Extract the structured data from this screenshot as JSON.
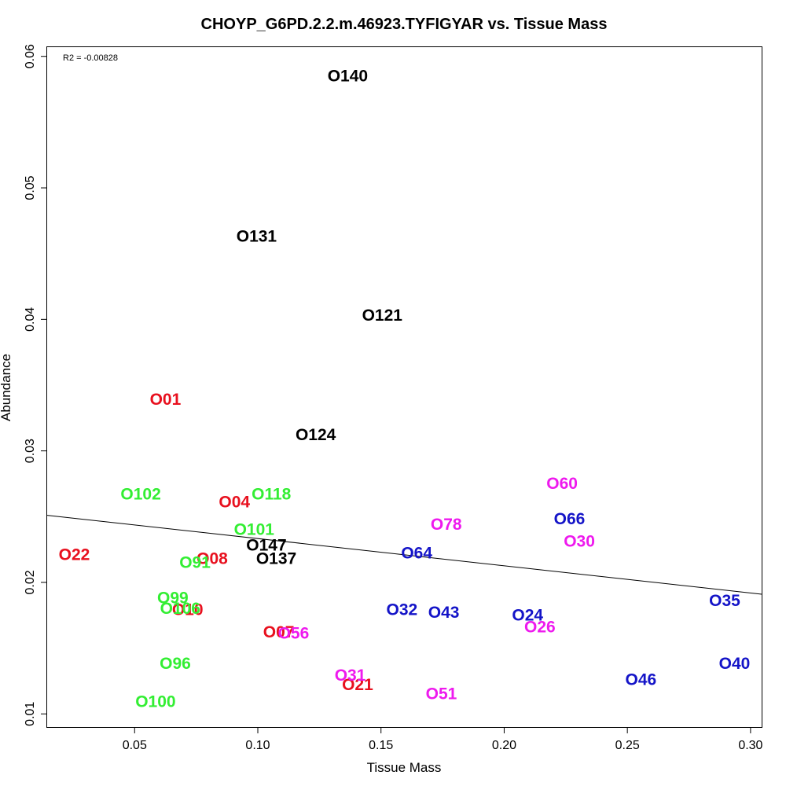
{
  "chart_data": {
    "type": "scatter",
    "title": "CHOYP_G6PD.2.2.m.46923.TYFIGYAR vs. Tissue Mass",
    "xlabel": "Tissue Mass",
    "ylabel": "Abundance",
    "annotation": "R2 = -0.00828",
    "xlim": [
      0.0145,
      0.3045
    ],
    "ylim": [
      0.009,
      0.0607
    ],
    "xticks": [
      0.05,
      0.1,
      0.15,
      0.2,
      0.25,
      0.3
    ],
    "xtick_labels": [
      "0.05",
      "0.10",
      "0.15",
      "0.20",
      "0.25",
      "0.30"
    ],
    "yticks": [
      0.01,
      0.02,
      0.03,
      0.04,
      0.05,
      0.06
    ],
    "ytick_labels": [
      "0.01",
      "0.02",
      "0.03",
      "0.04",
      "0.05",
      "0.06"
    ],
    "grid": false,
    "colors": {
      "red": "#e8101e",
      "green": "#33ee33",
      "black": "#000000",
      "magenta": "#ee1aee",
      "blue": "#1414c8"
    },
    "regression": {
      "x": [
        0.0145,
        0.3045
      ],
      "y": [
        0.0251,
        0.0191
      ]
    },
    "points": [
      {
        "label": "O140",
        "x": 0.1365,
        "y": 0.0585,
        "color": "black"
      },
      {
        "label": "O131",
        "x": 0.0995,
        "y": 0.0463,
        "color": "black"
      },
      {
        "label": "O121",
        "x": 0.1505,
        "y": 0.0403,
        "color": "black"
      },
      {
        "label": "O124",
        "x": 0.1235,
        "y": 0.0312,
        "color": "black"
      },
      {
        "label": "O147",
        "x": 0.1035,
        "y": 0.0228,
        "color": "black"
      },
      {
        "label": "O137",
        "x": 0.1075,
        "y": 0.0218,
        "color": "black"
      },
      {
        "label": "O01",
        "x": 0.0625,
        "y": 0.0339,
        "color": "red"
      },
      {
        "label": "O04",
        "x": 0.0905,
        "y": 0.0261,
        "color": "red"
      },
      {
        "label": "O22",
        "x": 0.0255,
        "y": 0.0221,
        "color": "red"
      },
      {
        "label": "O08",
        "x": 0.0815,
        "y": 0.0218,
        "color": "red"
      },
      {
        "label": "O10",
        "x": 0.0715,
        "y": 0.0179,
        "color": "red"
      },
      {
        "label": "O07",
        "x": 0.1085,
        "y": 0.0162,
        "color": "red"
      },
      {
        "label": "O21",
        "x": 0.1405,
        "y": 0.0122,
        "color": "red"
      },
      {
        "label": "O102",
        "x": 0.0525,
        "y": 0.0267,
        "color": "green"
      },
      {
        "label": "O118",
        "x": 0.1055,
        "y": 0.0267,
        "color": "green"
      },
      {
        "label": "O101",
        "x": 0.0985,
        "y": 0.024,
        "color": "green"
      },
      {
        "label": "O91",
        "x": 0.0745,
        "y": 0.0215,
        "color": "green"
      },
      {
        "label": "O99",
        "x": 0.0655,
        "y": 0.0188,
        "color": "green"
      },
      {
        "label": "O106",
        "x": 0.0685,
        "y": 0.018,
        "color": "green"
      },
      {
        "label": "O96",
        "x": 0.0665,
        "y": 0.0138,
        "color": "green"
      },
      {
        "label": "O100",
        "x": 0.0585,
        "y": 0.0109,
        "color": "green"
      },
      {
        "label": "O60",
        "x": 0.2235,
        "y": 0.0275,
        "color": "magenta"
      },
      {
        "label": "O78",
        "x": 0.1765,
        "y": 0.0244,
        "color": "magenta"
      },
      {
        "label": "O30",
        "x": 0.2305,
        "y": 0.0231,
        "color": "magenta"
      },
      {
        "label": "O56",
        "x": 0.1145,
        "y": 0.0161,
        "color": "magenta"
      },
      {
        "label": "O26",
        "x": 0.2145,
        "y": 0.0166,
        "color": "magenta"
      },
      {
        "label": "O31",
        "x": 0.1375,
        "y": 0.0129,
        "color": "magenta"
      },
      {
        "label": "O51",
        "x": 0.1745,
        "y": 0.0115,
        "color": "magenta"
      },
      {
        "label": "O66",
        "x": 0.2265,
        "y": 0.0248,
        "color": "blue"
      },
      {
        "label": "O64",
        "x": 0.1645,
        "y": 0.0222,
        "color": "blue"
      },
      {
        "label": "O32",
        "x": 0.1585,
        "y": 0.0179,
        "color": "blue"
      },
      {
        "label": "O43",
        "x": 0.1755,
        "y": 0.0177,
        "color": "blue"
      },
      {
        "label": "O24",
        "x": 0.2095,
        "y": 0.0175,
        "color": "blue"
      },
      {
        "label": "O35",
        "x": 0.2895,
        "y": 0.0186,
        "color": "blue"
      },
      {
        "label": "O40",
        "x": 0.2935,
        "y": 0.0138,
        "color": "blue"
      },
      {
        "label": "O46",
        "x": 0.2555,
        "y": 0.0126,
        "color": "blue"
      }
    ]
  }
}
